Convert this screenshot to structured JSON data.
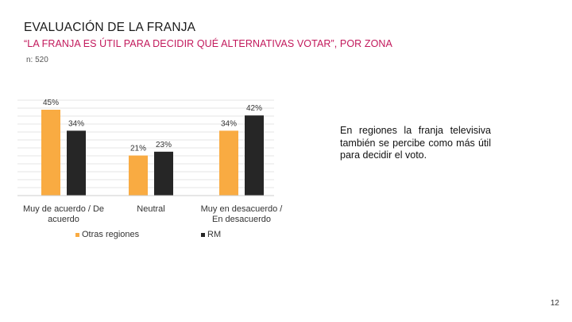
{
  "header": {
    "title": "EVALUACIÓN DE LA FRANJA",
    "subtitle": "“LA FRANJA ES ÚTIL PARA DECIDIR QUÉ ALTERNATIVAS VOTAR”, POR ZONA",
    "sample": "n: 520"
  },
  "annotation": "En regiones la franja televisiva también se percibe como más útil para decidir el voto.",
  "page_number": "12",
  "colors": {
    "otras_regiones": "#f9ab42",
    "rm": "#262626",
    "subtitle": "#c2185b"
  },
  "chart_data": {
    "type": "bar",
    "title": "",
    "xlabel": "",
    "ylabel": "",
    "categories": [
      [
        "Muy de acuerdo / De",
        "acuerdo"
      ],
      [
        "Neutral"
      ],
      [
        "Muy en desacuerdo /",
        "En desacuerdo"
      ]
    ],
    "series": [
      {
        "name": "Otras regiones",
        "values": [
          45,
          21,
          34
        ],
        "labels": [
          "45%",
          "21%",
          "34%"
        ]
      },
      {
        "name": "RM",
        "values": [
          34,
          23,
          42
        ],
        "labels": [
          "34%",
          "23%",
          "42%"
        ]
      }
    ],
    "ylim": [
      0,
      50
    ],
    "grid": true,
    "legend": "bottom"
  }
}
